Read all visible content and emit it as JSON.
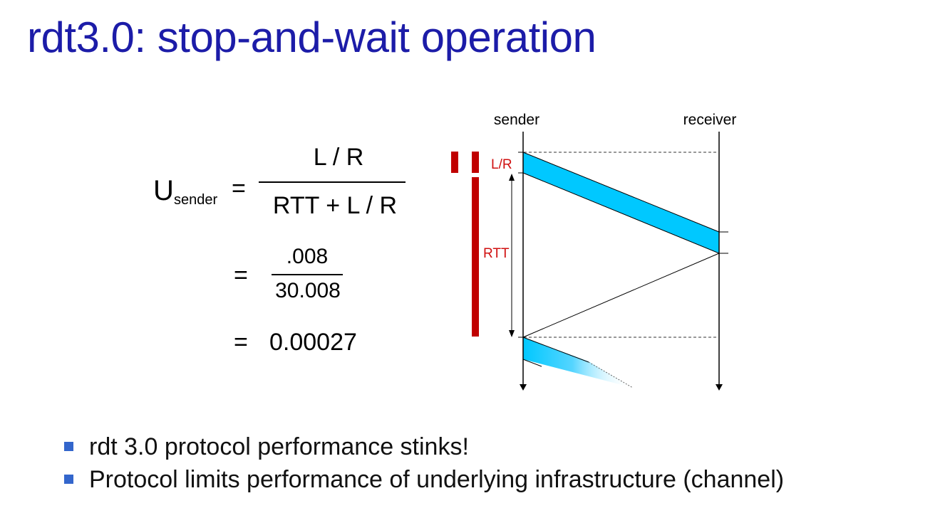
{
  "title": "rdt3.0: stop-and-wait operation",
  "formula": {
    "u": "U",
    "u_sub": "sender",
    "eq1": "=",
    "num1": "L / R",
    "den1": "RTT + L / R",
    "eq2": "=",
    "num2": ".008",
    "den2": "30.008",
    "eq3": "=",
    "result": "0.00027"
  },
  "diagram": {
    "sender": "sender",
    "receiver": "receiver",
    "lr_label": "L/R",
    "rtt_label": "RTT",
    "colors": {
      "packet": "#00c8ff",
      "highlight": "#c00000",
      "label_red": "#d01010"
    }
  },
  "bullets": [
    "rdt 3.0 protocol performance stinks!",
    "Protocol limits performance of underlying infrastructure (channel)"
  ]
}
